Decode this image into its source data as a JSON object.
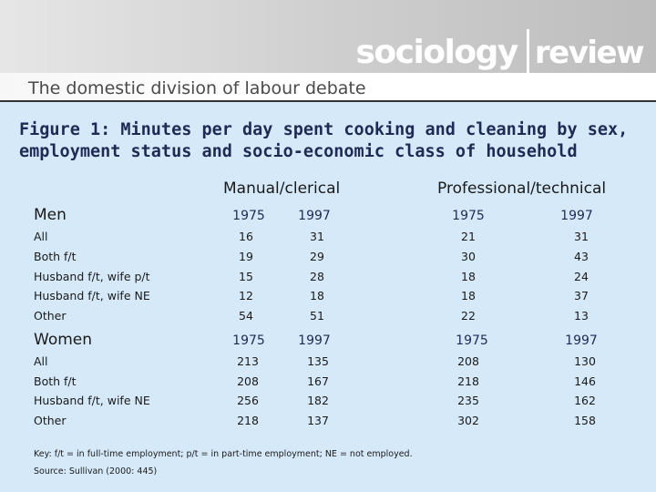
{
  "header": {
    "logo_part1": "sociology",
    "logo_part2": "review",
    "subtitle": "The domestic division of labour debate"
  },
  "figure": {
    "title_line1": "Figure 1: Minutes per day spent cooking and cleaning by sex,",
    "title_line2": "employment status and socio-economic class of household",
    "group1": "Manual/clerical",
    "group2": "Professional/technical"
  },
  "men": {
    "heading": "Men",
    "years": [
      "1975",
      "1997",
      "1975",
      "1997"
    ],
    "rows": [
      {
        "label": "All",
        "values": [
          "16",
          "31",
          "21",
          "31"
        ]
      },
      {
        "label": "Both f/t",
        "values": [
          "19",
          "29",
          "30",
          "43"
        ]
      },
      {
        "label": "Husband f/t, wife p/t",
        "values": [
          "15",
          "28",
          "18",
          "24"
        ]
      },
      {
        "label": "Husband f/t, wife NE",
        "values": [
          "12",
          "18",
          "18",
          "37"
        ]
      },
      {
        "label": "Other",
        "values": [
          "54",
          "51",
          "22",
          "13"
        ]
      }
    ]
  },
  "women": {
    "heading": "Women",
    "years": [
      "1975",
      "1997",
      "1975",
      "1997"
    ],
    "rows": [
      {
        "label": "All",
        "values": [
          "213",
          "135",
          "208",
          "130"
        ]
      },
      {
        "label": "Both f/t",
        "values": [
          "208",
          "167",
          "218",
          "146"
        ]
      },
      {
        "label": "Husband f/t, wife NE",
        "values": [
          "256",
          "182",
          "235",
          "162"
        ]
      },
      {
        "label": "Other",
        "values": [
          "218",
          "137",
          "302",
          "158"
        ]
      }
    ]
  },
  "notes": {
    "key": "Key: f/t = in full-time employment; p/t = in part-time employment; NE = not employed.",
    "source": "Source: Sullivan (2000: 445)"
  }
}
